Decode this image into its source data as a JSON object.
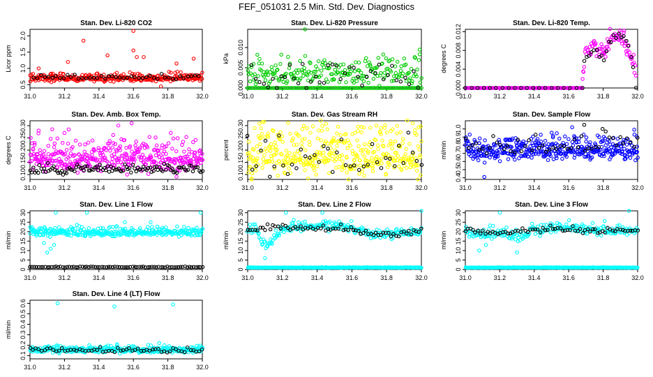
{
  "title": "FEF_051031  2.5 Min. Std. Dev. Diagnostics",
  "colors": {
    "red": "#ff0000",
    "green": "#00cc00",
    "magenta": "#ff00ff",
    "yellow": "#ffff00",
    "blue": "#0000ff",
    "cyan": "#00ffff",
    "black": "#000000"
  },
  "chart_data": [
    {
      "type": "scatter",
      "title": "Stan. Dev. Li-820 CO2",
      "xlabel": "",
      "ylabel": "Licor ppm",
      "xlim": [
        31.0,
        32.0
      ],
      "ylim": [
        0.4,
        2.2
      ],
      "xticks": [
        "31.0",
        "31.2",
        "31.4",
        "31.6",
        "31.8",
        "32.0"
      ],
      "yticks": [
        "0.5",
        "1.0",
        "1.5",
        "2.0"
      ],
      "series": [
        {
          "name": "main",
          "color": "red",
          "base": 0.7,
          "noise": 0.08,
          "n": 300,
          "x_start": 31.0,
          "x_end": 32.0,
          "outliers": [
            [
              31.22,
              1.2
            ],
            [
              31.31,
              1.85
            ],
            [
              31.45,
              1.4
            ],
            [
              31.6,
              2.15
            ],
            [
              31.62,
              1.35
            ],
            [
              31.85,
              1.15
            ],
            [
              31.95,
              1.3
            ],
            [
              31.6,
              1.55
            ],
            [
              31.66,
              1.35
            ],
            [
              31.76,
              0.45
            ],
            [
              31.05,
              1.0
            ]
          ]
        },
        {
          "name": "black",
          "color": "black",
          "base": 0.72,
          "noise": 0.05,
          "n": 45,
          "x_start": 31.02,
          "x_end": 31.98,
          "outliers": []
        }
      ]
    },
    {
      "type": "scatter",
      "title": "Stan. Dev. Li-820 Pressure",
      "xlabel": "",
      "ylabel": "kPa",
      "xlim": [
        31.0,
        32.0
      ],
      "ylim": [
        0.0,
        0.0145
      ],
      "xticks": [
        "31.0",
        "31.2",
        "31.4",
        "31.6",
        "31.8",
        "32.0"
      ],
      "yticks": [
        "0.000",
        "0.005",
        "0.010"
      ],
      "series": [
        {
          "name": "bottom",
          "color": "green",
          "base": 0.0,
          "noise": 0.0,
          "n": 120,
          "x_start": 31.0,
          "x_end": 32.0,
          "outliers": []
        },
        {
          "name": "band",
          "color": "green",
          "base": 0.0035,
          "noise": 0.0022,
          "n": 220,
          "x_start": 31.0,
          "x_end": 32.0,
          "outliers": [
            [
              31.33,
              0.0145
            ],
            [
              31.99,
              0.0095
            ]
          ]
        },
        {
          "name": "black",
          "color": "black",
          "base": 0.0025,
          "noise": 0.0025,
          "n": 40,
          "x_start": 31.02,
          "x_end": 31.98,
          "outliers": []
        }
      ]
    },
    {
      "type": "scatter",
      "title": "Stan. Dev. Li-820 Temp.",
      "xlabel": "",
      "ylabel": "degrees C",
      "xlim": [
        31.0,
        32.0
      ],
      "ylim": [
        0.0,
        0.0125
      ],
      "xticks": [
        "31.0",
        "31.2",
        "31.4",
        "31.6",
        "31.8",
        "32.0"
      ],
      "yticks": [
        "0.000",
        "0.004",
        "0.008",
        "0.012"
      ],
      "series": [
        {
          "name": "flat",
          "color": "magenta",
          "base": 0.0,
          "noise": 0.0,
          "n": 110,
          "x_start": 31.0,
          "x_end": 31.68,
          "outliers": []
        },
        {
          "name": "curve",
          "color": "magenta",
          "curve": [
            [
              31.68,
              0.003
            ],
            [
              31.7,
              0.008
            ],
            [
              31.75,
              0.009
            ],
            [
              31.8,
              0.007
            ],
            [
              31.85,
              0.011
            ],
            [
              31.9,
              0.011
            ],
            [
              31.95,
              0.008
            ],
            [
              31.99,
              0.003
            ]
          ],
          "noise": 0.0012,
          "n": 90,
          "outliers": []
        },
        {
          "name": "black",
          "color": "black",
          "curve": [
            [
              31.69,
              0.006
            ],
            [
              31.75,
              0.0075
            ],
            [
              31.8,
              0.006
            ],
            [
              31.86,
              0.011
            ],
            [
              31.92,
              0.0105
            ],
            [
              31.97,
              0.006
            ],
            [
              31.99,
              0.0
            ]
          ],
          "noise": 0.0008,
          "n": 22,
          "outliers": []
        },
        {
          "name": "blackflat",
          "color": "black",
          "base": 0.0,
          "noise": 0.0,
          "n": 20,
          "x_start": 31.0,
          "x_end": 31.68,
          "outliers": []
        }
      ]
    },
    {
      "type": "scatter",
      "title": "Stan. Dev. Amb. Box Temp.",
      "xlabel": "",
      "ylabel": "degrees C",
      "xlim": [
        31.0,
        32.0
      ],
      "ylim": [
        0.08,
        0.32
      ],
      "xticks": [
        "31.0",
        "31.2",
        "31.4",
        "31.6",
        "31.8",
        "32.0"
      ],
      "yticks": [
        "0.10",
        "0.15",
        "0.20",
        "0.25",
        "0.30"
      ],
      "series": [
        {
          "name": "main",
          "color": "magenta",
          "base": 0.17,
          "noise": 0.045,
          "n": 420,
          "x_start": 31.0,
          "x_end": 32.0,
          "outliers": [
            [
              31.59,
              0.31
            ],
            [
              31.2,
              0.27
            ],
            [
              31.05,
              0.28
            ]
          ]
        },
        {
          "name": "black",
          "color": "black",
          "base": 0.12,
          "noise": 0.012,
          "n": 110,
          "x_start": 31.0,
          "x_end": 32.0,
          "outliers": []
        }
      ]
    },
    {
      "type": "scatter",
      "title": "Stan. Dev. Gas Stream RH",
      "xlabel": "",
      "ylabel": "percent",
      "xlim": [
        31.0,
        32.0
      ],
      "ylim": [
        0.08,
        0.32
      ],
      "xticks": [
        "31.0",
        "31.2",
        "31.4",
        "31.6",
        "31.8",
        "32.0"
      ],
      "yticks": [
        "0.10",
        "0.15",
        "0.20",
        "0.25",
        "0.30"
      ],
      "series": [
        {
          "name": "main",
          "color": "yellow",
          "base": 0.18,
          "noise": 0.07,
          "n": 420,
          "x_start": 31.0,
          "x_end": 32.0,
          "outliers": []
        },
        {
          "name": "black",
          "color": "black",
          "base": 0.17,
          "noise": 0.06,
          "n": 40,
          "x_start": 31.0,
          "x_end": 32.0,
          "outliers": []
        }
      ]
    },
    {
      "type": "scatter",
      "title": "Stan. Dev. Sample Flow",
      "xlabel": "",
      "ylabel": "ml/min",
      "xlim": [
        31.0,
        32.0
      ],
      "ylim": [
        0.38,
        1.1
      ],
      "xticks": [
        "31.0",
        "31.2",
        "31.4",
        "31.6",
        "31.8",
        "32.0"
      ],
      "yticks": [
        "0.4",
        "0.5",
        "0.6",
        "0.7",
        "0.8",
        "0.9",
        "1.0"
      ],
      "series": [
        {
          "name": "main",
          "color": "blue",
          "base": 0.74,
          "noise": 0.09,
          "n": 420,
          "x_start": 31.0,
          "x_end": 32.0,
          "outliers": [
            [
              31.11,
              0.41
            ],
            [
              31.98,
              0.99
            ],
            [
              31.62,
              1.02
            ]
          ]
        },
        {
          "name": "black",
          "color": "black",
          "base": 0.8,
          "noise": 0.08,
          "n": 50,
          "x_start": 31.0,
          "x_end": 32.0,
          "outliers": [
            [
              31.69,
              1.05
            ]
          ]
        }
      ]
    },
    {
      "type": "scatter",
      "title": "Stan. Dev. Line 1 Flow",
      "xlabel": "",
      "ylabel": "ml/min",
      "xlim": [
        31.0,
        32.0
      ],
      "ylim": [
        0,
        31
      ],
      "xticks": [
        "31.0",
        "31.2",
        "31.4",
        "31.6",
        "31.8",
        "32.0"
      ],
      "yticks": [
        "0",
        "5",
        "10",
        "15",
        "20",
        "25",
        "30"
      ],
      "series": [
        {
          "name": "main",
          "color": "cyan",
          "base": 19.5,
          "noise": 1.5,
          "n": 330,
          "x_start": 31.0,
          "x_end": 32.0,
          "outliers": [
            [
              31.1,
              9
            ],
            [
              31.12,
              11
            ],
            [
              31.14,
              13
            ],
            [
              31.15,
              30
            ],
            [
              31.33,
              30
            ],
            [
              31.99,
              30
            ],
            [
              31.55,
              25
            ],
            [
              31.7,
              25
            ],
            [
              31.08,
              14
            ]
          ]
        },
        {
          "name": "black",
          "color": "black",
          "base": 1.3,
          "noise": 0.15,
          "n": 80,
          "x_start": 31.0,
          "x_end": 32.0,
          "outliers": []
        }
      ]
    },
    {
      "type": "scatter",
      "title": "Stan. Dev. Line 2 Flow",
      "xlabel": "",
      "ylabel": "ml/min",
      "xlim": [
        31.0,
        32.0
      ],
      "ylim": [
        0,
        31
      ],
      "xticks": [
        "31.0",
        "31.2",
        "31.4",
        "31.6",
        "31.8",
        "32.0"
      ],
      "yticks": [
        "0",
        "5",
        "10",
        "15",
        "20",
        "25",
        "30"
      ],
      "series": [
        {
          "name": "bottom",
          "color": "cyan",
          "base": 1.0,
          "noise": 0.1,
          "n": 260,
          "x_start": 31.0,
          "x_end": 32.0,
          "outliers": []
        },
        {
          "name": "curve",
          "color": "cyan",
          "curve": [
            [
              31.0,
              21
            ],
            [
              31.05,
              21
            ],
            [
              31.1,
              12
            ],
            [
              31.15,
              16
            ],
            [
              31.2,
              22
            ],
            [
              31.4,
              23
            ],
            [
              31.6,
              22
            ],
            [
              31.7,
              18
            ],
            [
              31.9,
              19
            ],
            [
              32.0,
              20
            ]
          ],
          "noise": 1.8,
          "n": 220,
          "outliers": [
            [
              31.1,
              6
            ],
            [
              31.22,
              30
            ],
            [
              31.43,
              30
            ],
            [
              32.0,
              31
            ]
          ]
        },
        {
          "name": "black",
          "color": "black",
          "curve": [
            [
              31.0,
              21
            ],
            [
              31.2,
              22
            ],
            [
              31.4,
              22
            ],
            [
              31.6,
              22
            ],
            [
              31.65,
              19
            ],
            [
              31.8,
              18
            ],
            [
              32.0,
              20
            ]
          ],
          "noise": 1.0,
          "n": 70,
          "outliers": []
        }
      ]
    },
    {
      "type": "scatter",
      "title": "Stan. Dev. Line 3 Flow",
      "xlabel": "",
      "ylabel": "ml/min",
      "xlim": [
        31.0,
        32.0
      ],
      "ylim": [
        0,
        31
      ],
      "xticks": [
        "31.0",
        "31.2",
        "31.4",
        "31.6",
        "31.8",
        "32.0"
      ],
      "yticks": [
        "0",
        "5",
        "10",
        "15",
        "20",
        "25",
        "30"
      ],
      "series": [
        {
          "name": "bottom",
          "color": "cyan",
          "base": 1.0,
          "noise": 0.1,
          "n": 260,
          "x_start": 31.0,
          "x_end": 32.0,
          "outliers": []
        },
        {
          "name": "curve",
          "color": "cyan",
          "curve": [
            [
              31.0,
              21
            ],
            [
              31.1,
              18
            ],
            [
              31.2,
              20
            ],
            [
              31.3,
              16
            ],
            [
              31.4,
              21
            ],
            [
              31.6,
              22
            ],
            [
              31.8,
              20
            ],
            [
              32.0,
              21
            ]
          ],
          "noise": 2.0,
          "n": 230,
          "outliers": [
            [
              31.08,
              10
            ],
            [
              31.12,
              13
            ],
            [
              31.3,
              9
            ],
            [
              31.95,
              31
            ],
            [
              31.2,
              30
            ]
          ]
        },
        {
          "name": "black",
          "color": "black",
          "curve": [
            [
              31.0,
              21
            ],
            [
              31.2,
              19
            ],
            [
              31.4,
              21
            ],
            [
              31.6,
              21
            ],
            [
              31.8,
              20
            ],
            [
              32.0,
              21
            ]
          ],
          "noise": 1.0,
          "n": 70,
          "outliers": []
        }
      ]
    },
    {
      "type": "scatter",
      "title": "Stan. Dev. Line 4 (LT) Flow",
      "xlabel": "",
      "ylabel": "ml/min",
      "xlim": [
        31.0,
        32.0
      ],
      "ylim": [
        0.07,
        0.63
      ],
      "xticks": [
        "31.0",
        "31.2",
        "31.4",
        "31.6",
        "31.8",
        "32.0"
      ],
      "yticks": [
        "0.1",
        "0.2",
        "0.3",
        "0.4",
        "0.5",
        "0.6"
      ],
      "series": [
        {
          "name": "main",
          "color": "cyan",
          "base": 0.155,
          "noise": 0.02,
          "n": 330,
          "x_start": 31.0,
          "x_end": 32.0,
          "outliers": [
            [
              31.16,
              0.6
            ],
            [
              31.49,
              0.57
            ],
            [
              31.83,
              0.59
            ],
            [
              31.75,
              0.22
            ],
            [
              31.78,
              0.2
            ]
          ]
        },
        {
          "name": "black",
          "color": "black",
          "base": 0.15,
          "noise": 0.015,
          "n": 60,
          "x_start": 31.0,
          "x_end": 32.0,
          "outliers": []
        }
      ]
    }
  ]
}
